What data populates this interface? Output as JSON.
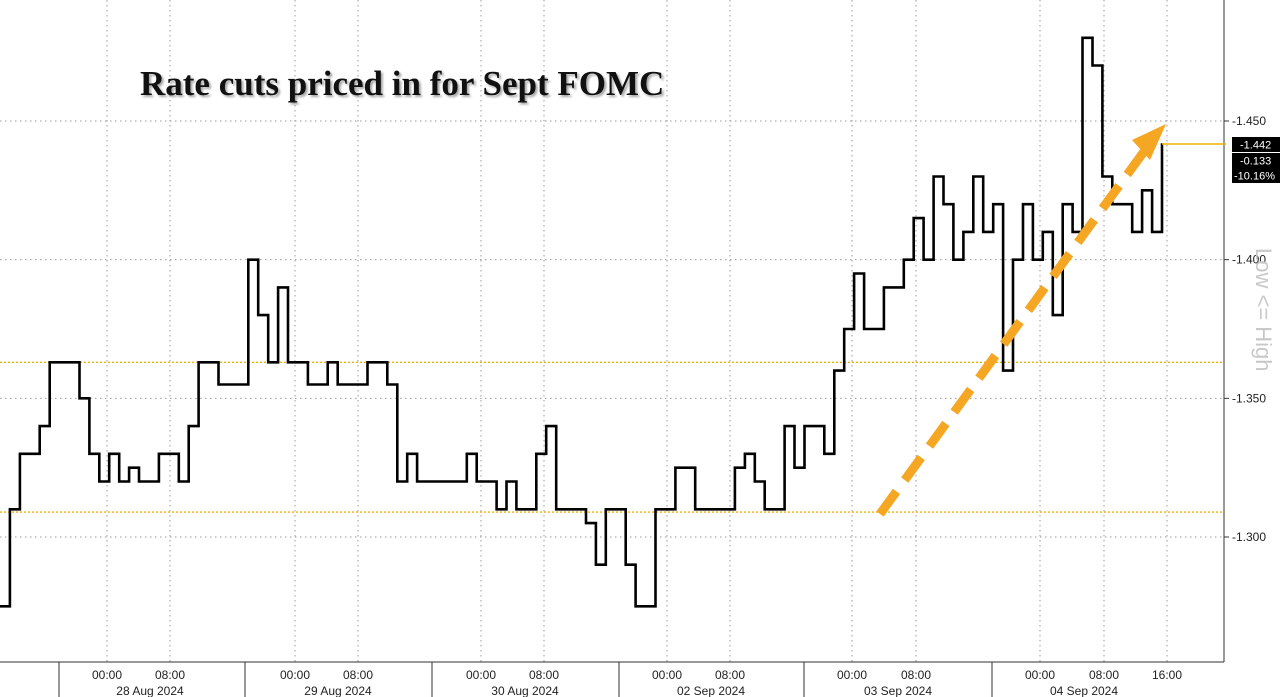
{
  "chart_data": {
    "type": "line",
    "title": "Rate cuts priced in for Sept FOMC",
    "side_label": "Low <= High",
    "ylim": [
      -1.26,
      -1.49
    ],
    "y_axis_inverted": true,
    "y_ticks": [
      "-1.450",
      "-1.400",
      "-1.350",
      "-1.300"
    ],
    "y_tick_values": [
      -1.45,
      -1.4,
      -1.35,
      -1.3
    ],
    "x_time_labels": [
      "00:00",
      "08:00",
      "00:00",
      "08:00",
      "00:00",
      "08:00",
      "00:00",
      "08:00",
      "00:00",
      "08:00",
      "00:00",
      "08:00",
      "16:00"
    ],
    "x_date_labels": [
      "28 Aug 2024",
      "29 Aug 2024",
      "30 Aug 2024",
      "02 Sep 2024",
      "03 Sep 2024",
      "04 Sep 2024"
    ],
    "reference_lines": [
      -1.363,
      -1.309
    ],
    "last_value_badge": {
      "value": "-1.442",
      "change": "-0.133",
      "pct": "-10.16%"
    },
    "grid": true,
    "colors": {
      "line": "#000000",
      "grid": "#888888",
      "reference": "#f0b400",
      "arrow": "#f5a623",
      "badge": "#000000"
    },
    "series": [
      {
        "values": [
          -1.275,
          -1.31,
          -1.33,
          -1.33,
          -1.34,
          -1.363,
          -1.363,
          -1.363,
          -1.35,
          -1.33,
          -1.32,
          -1.33,
          -1.32,
          -1.325,
          -1.32,
          -1.32,
          -1.33,
          -1.33,
          -1.32,
          -1.34,
          -1.363,
          -1.363,
          -1.355,
          -1.355,
          -1.355,
          -1.4,
          -1.38,
          -1.363,
          -1.39,
          -1.363,
          -1.363,
          -1.355,
          -1.355,
          -1.363,
          -1.355,
          -1.355,
          -1.355,
          -1.363,
          -1.363,
          -1.355,
          -1.32,
          -1.33,
          -1.32,
          -1.32,
          -1.32,
          -1.32,
          -1.32,
          -1.33,
          -1.32,
          -1.32,
          -1.31,
          -1.32,
          -1.31,
          -1.31,
          -1.33,
          -1.34,
          -1.31,
          -1.31,
          -1.31,
          -1.305,
          -1.29,
          -1.31,
          -1.31,
          -1.29,
          -1.275,
          -1.275,
          -1.31,
          -1.31,
          -1.325,
          -1.325,
          -1.31,
          -1.31,
          -1.31,
          -1.31,
          -1.325,
          -1.33,
          -1.32,
          -1.31,
          -1.31,
          -1.34,
          -1.325,
          -1.34,
          -1.34,
          -1.33,
          -1.36,
          -1.375,
          -1.395,
          -1.375,
          -1.375,
          -1.39,
          -1.39,
          -1.4,
          -1.415,
          -1.4,
          -1.43,
          -1.42,
          -1.4,
          -1.41,
          -1.43,
          -1.41,
          -1.42,
          -1.36,
          -1.4,
          -1.42,
          -1.4,
          -1.41,
          -1.38,
          -1.42,
          -1.41,
          -1.48,
          -1.47,
          -1.43,
          -1.42,
          -1.42,
          -1.41,
          -1.425,
          -1.41,
          -1.442
        ]
      }
    ]
  }
}
